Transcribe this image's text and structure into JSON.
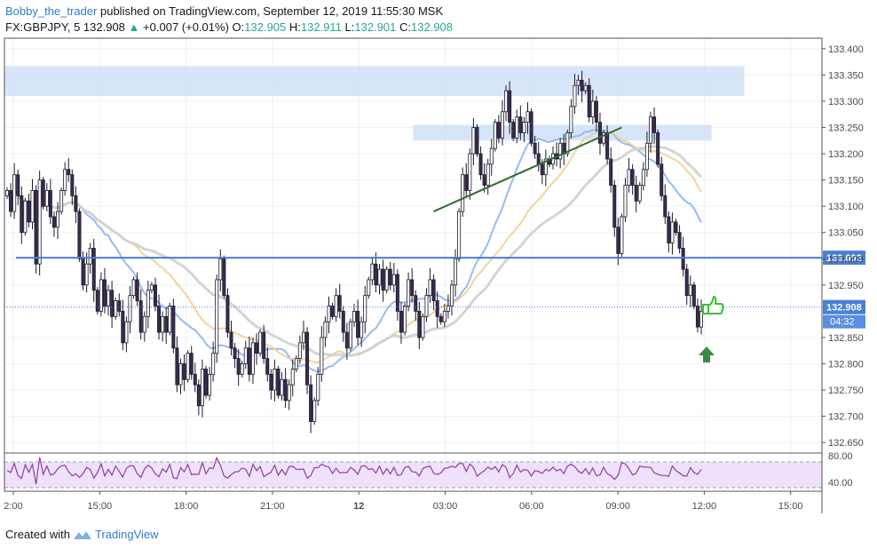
{
  "header": {
    "author": "Bobby_the_trader",
    "published_text": "published on TradingView.com, September 12, 2019 11:55:30 MSK",
    "symbol": "FX:GBPJPY, 5",
    "last": "132.908",
    "change_arrow": "▲",
    "change": "+0.007 (+0.01%)",
    "o_label": "O:",
    "o_value": "132.905",
    "h_label": "H:",
    "h_value": "132.911",
    "l_label": "L:",
    "l_value": "132.901",
    "c_label": "C:",
    "c_value": "132.908"
  },
  "footer": {
    "created_with": "Created with",
    "brand": "TradingView"
  },
  "colors": {
    "bull": "#ffffff",
    "bear": "#3d2a52",
    "wick": "#1b1b2b",
    "ema_blue": "#8ab4f0",
    "ema_yellow": "#f0d08a",
    "ema_gray": "#cfcfcf",
    "level_line": "#4a7fd6",
    "zone": "#c9dcf7",
    "trendline": "#2f6b2f",
    "rsi": "#8e3e9e",
    "rsi_band": "#efe0fb",
    "thumb": "#34c234",
    "arrow": "#3a8a45"
  },
  "chart_data": {
    "type": "candlestick",
    "x_tick_labels": [
      "2:00",
      "15:00",
      "18:00",
      "21:00",
      "12",
      "03:00",
      "06:00",
      "09:00",
      "12:00",
      "15:00"
    ],
    "y_tick_labels": [
      "133.400",
      "133.350",
      "133.300",
      "133.250",
      "133.200",
      "133.150",
      "133.100",
      "133.050",
      "133.000",
      "132.950",
      "132.850",
      "132.800",
      "132.750",
      "132.700",
      "132.650"
    ],
    "ylim": [
      132.63,
      133.42
    ],
    "horizontal_level": {
      "value": 133.002,
      "label": "133.002"
    },
    "price_label": {
      "value": 132.908,
      "label": "132.908",
      "countdown": "04:32"
    },
    "zones": [
      {
        "from_x": 0.0,
        "to_x": 0.905,
        "low": 133.31,
        "high": 133.367
      },
      {
        "from_x": 0.5,
        "to_x": 0.865,
        "low": 133.225,
        "high": 133.255
      }
    ],
    "trendline": {
      "x1": 0.525,
      "y1": 133.09,
      "x2": 0.755,
      "y2": 133.25
    },
    "annotations": [
      "thumbs-up",
      "up-arrow"
    ],
    "close": [
      133.13,
      133.09,
      133.16,
      133.12,
      133.05,
      133.11,
      133.07,
      133.13,
      132.99,
      133.15,
      133.1,
      133.13,
      133.08,
      133.06,
      133.09,
      133.13,
      133.17,
      133.16,
      133.12,
      133.09,
      133.0,
      132.95,
      132.99,
      133.02,
      132.94,
      132.9,
      132.96,
      132.91,
      132.94,
      132.89,
      132.92,
      132.9,
      132.84,
      132.88,
      132.93,
      132.96,
      132.92,
      132.86,
      132.89,
      132.94,
      132.95,
      132.91,
      132.86,
      132.89,
      132.86,
      132.91,
      132.83,
      132.76,
      132.8,
      132.77,
      132.82,
      132.78,
      132.76,
      132.72,
      132.79,
      132.74,
      132.78,
      132.82,
      132.96,
      133.0,
      132.93,
      132.86,
      132.83,
      132.81,
      132.78,
      132.8,
      132.83,
      132.78,
      132.84,
      132.82,
      132.86,
      132.81,
      132.78,
      132.75,
      132.79,
      132.74,
      132.77,
      132.73,
      132.76,
      132.79,
      132.81,
      132.84,
      132.86,
      132.76,
      132.69,
      132.73,
      132.78,
      132.85,
      132.88,
      132.91,
      132.89,
      132.93,
      132.9,
      132.86,
      132.83,
      132.88,
      132.9,
      132.85,
      132.88,
      132.93,
      132.96,
      132.99,
      132.95,
      132.98,
      132.94,
      132.98,
      132.95,
      132.97,
      132.9,
      132.86,
      132.91,
      132.96,
      132.93,
      132.9,
      132.85,
      132.89,
      132.93,
      132.96,
      132.92,
      132.89,
      132.88,
      132.9,
      132.91,
      132.95,
      133.0,
      133.09,
      133.16,
      133.13,
      133.2,
      133.25,
      133.2,
      133.16,
      133.14,
      133.18,
      133.21,
      133.26,
      133.23,
      133.28,
      133.32,
      133.26,
      133.23,
      133.27,
      133.24,
      133.26,
      133.28,
      133.22,
      133.2,
      133.18,
      133.16,
      133.19,
      133.18,
      133.2,
      133.19,
      133.22,
      133.2,
      133.24,
      133.29,
      133.33,
      133.34,
      133.32,
      133.33,
      133.27,
      133.3,
      133.26,
      133.22,
      133.24,
      133.19,
      133.14,
      133.06,
      133.01,
      133.08,
      133.14,
      133.17,
      133.14,
      133.11,
      133.14,
      133.17,
      133.22,
      133.27,
      133.24,
      133.18,
      133.12,
      133.08,
      133.03,
      133.07,
      133.05,
      133.02,
      132.98,
      132.93,
      132.95,
      132.91,
      132.87,
      132.9
    ]
  }
}
